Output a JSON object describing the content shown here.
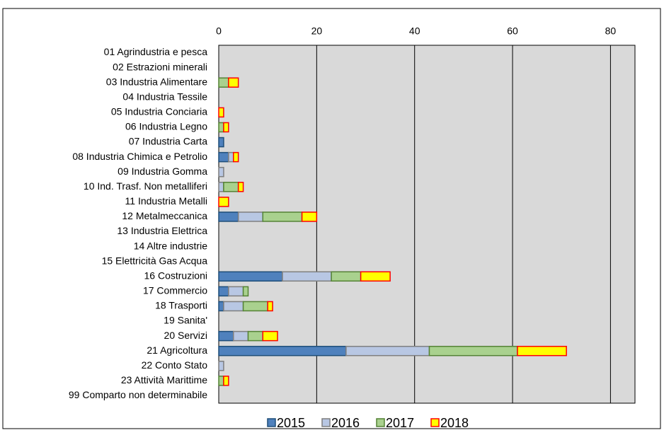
{
  "chart_data": {
    "type": "stacked_barh",
    "categories": [
      "01 Agrindustria e pesca",
      "02 Estrazioni minerali",
      "03 Industria Alimentare",
      "04 Industria Tessile",
      "05 Industria Conciaria",
      "06 Industria Legno",
      "07 Industria Carta",
      "08 Industria Chimica e Petrolio",
      "09 Industria Gomma",
      "10 Ind. Trasf. Non metalliferi",
      "11 Industria Metalli",
      "12 Metalmeccanica",
      "13 Industria Elettrica",
      "14 Altre industrie",
      "15 Elettricità Gas Acqua",
      "16 Costruzioni",
      "17 Commercio",
      "18 Trasporti",
      "19 Sanita'",
      "20 Servizi",
      "21 Agricoltura",
      "22 Conto Stato",
      "23 Attività Marittime",
      "99 Comparto non determinabile"
    ],
    "series": [
      {
        "name": "2015",
        "color": "#4f81bd",
        "edgecolor": "#1f4e79",
        "values": [
          0,
          0,
          0,
          0,
          0,
          0,
          1,
          2,
          0,
          0,
          0,
          4,
          0,
          0,
          0,
          13,
          2,
          1,
          0,
          3,
          26,
          0,
          0,
          0
        ]
      },
      {
        "name": "2016",
        "color": "#b8c7e3",
        "edgecolor": "#7f7f7f",
        "values": [
          0,
          0,
          0,
          0,
          0,
          0,
          0,
          1,
          1,
          1,
          0,
          5,
          0,
          0,
          0,
          10,
          3,
          4,
          0,
          3,
          17,
          1,
          0,
          0
        ]
      },
      {
        "name": "2017",
        "color": "#a9d18e",
        "edgecolor": "#548235",
        "values": [
          0,
          0,
          2,
          0,
          0,
          1,
          0,
          0,
          0,
          3,
          0,
          8,
          0,
          0,
          0,
          6,
          1,
          5,
          0,
          3,
          18,
          0,
          1,
          0
        ]
      },
      {
        "name": "2018",
        "color": "#ffff00",
        "edgecolor": "#ff0000",
        "values": [
          0,
          0,
          2,
          0,
          1,
          1,
          0,
          1,
          0,
          1,
          2,
          3,
          0,
          0,
          0,
          6,
          0,
          1,
          0,
          3,
          10,
          0,
          1,
          0
        ]
      }
    ],
    "xlim": [
      0,
      85
    ],
    "xticks": [
      0,
      20,
      40,
      60,
      80
    ],
    "grid": true,
    "legend": "bottom"
  }
}
